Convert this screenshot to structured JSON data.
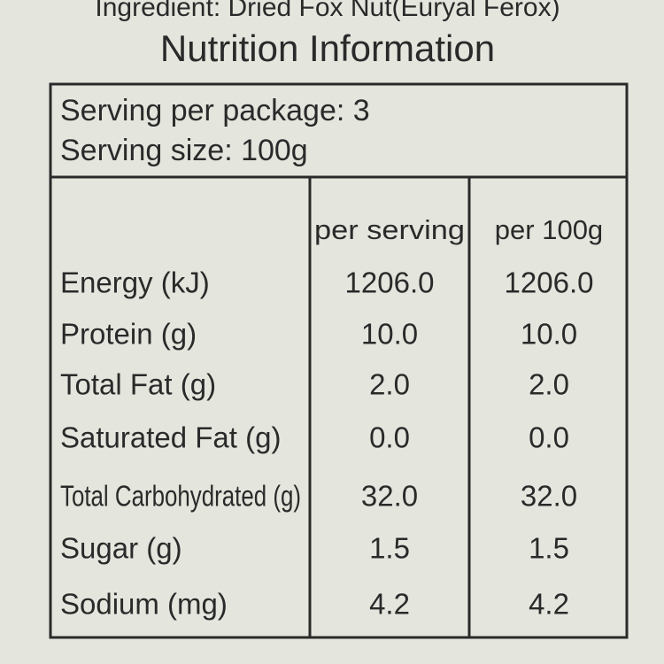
{
  "header": {
    "ingredient": "Ingredient: Dried Fox Nut(Euryal Ferox)",
    "title": "Nutrition Information"
  },
  "serving": {
    "per_package": "Serving per package: 3",
    "size": "Serving size: 100g"
  },
  "table": {
    "header": [
      "per serving",
      "per 100g"
    ],
    "rows": [
      [
        "Energy (kJ)",
        "1206.0",
        "1206.0"
      ],
      [
        "Protein (g)",
        "10.0",
        "10.0"
      ],
      [
        "Total Fat (g)",
        "2.0",
        "2.0"
      ],
      [
        "Saturated Fat (g)",
        "0.0",
        "0.0"
      ],
      [
        "Total Carbohydrated (g)",
        "32.0",
        "32.0"
      ],
      [
        "Sugar (g)",
        "1.5",
        "1.5"
      ],
      [
        "Sodium (mg)",
        "4.2",
        "4.2"
      ]
    ]
  }
}
